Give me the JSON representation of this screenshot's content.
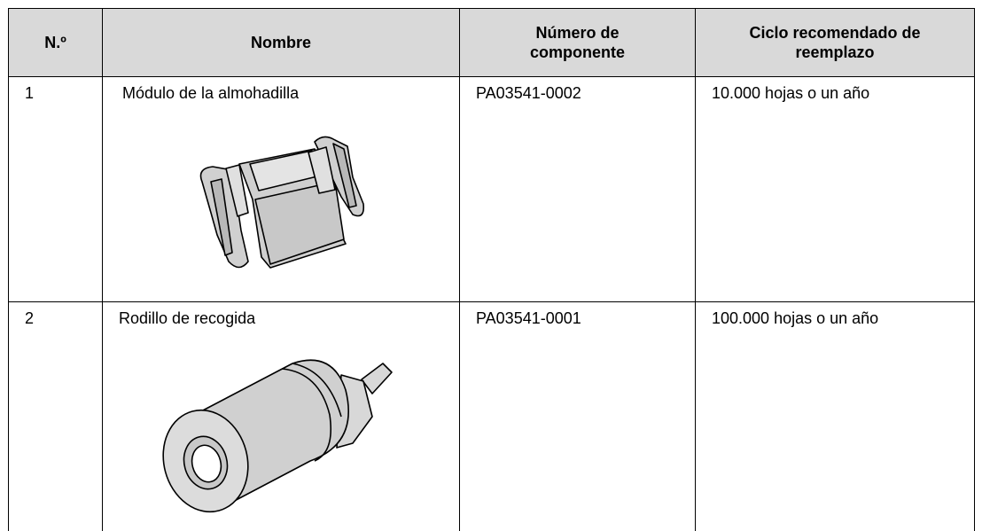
{
  "table": {
    "header": [
      "N.º",
      "Nombre",
      "Número de componente",
      "Ciclo recomendado de reemplazo"
    ],
    "rows": [
      [
        "1",
        "Módulo de la almohadilla",
        "PA03541-0002",
        "10.000 hojas o un año"
      ],
      [
        "2",
        "Rodillo de recogida",
        "PA03541-0001",
        "100.000 hojas o un año"
      ]
    ]
  }
}
